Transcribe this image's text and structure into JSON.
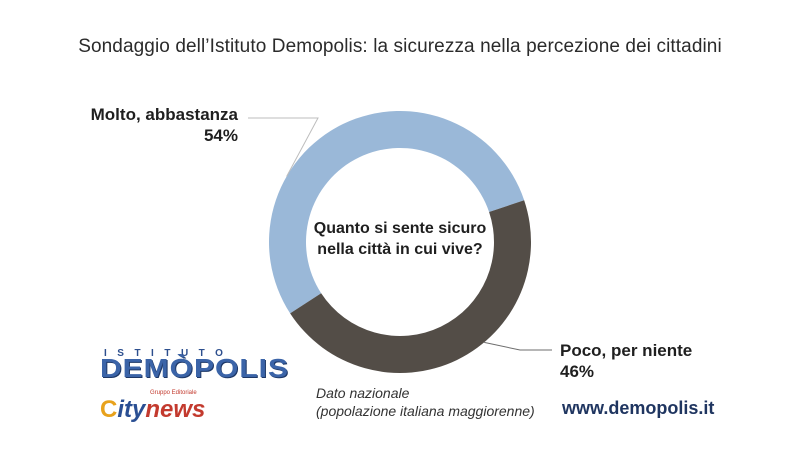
{
  "title": "Sondaggio dell’Istituto Demopolis: la sicurezza nella percezione dei cittadini",
  "center_question": [
    "Quanto si sente sicuro",
    "nella città in cui vive?"
  ],
  "footnote": [
    "Dato nazionale",
    "(popolazione italiana maggiorenne)"
  ],
  "website": "www.demopolis.it",
  "logos": {
    "istituto": "ISTITUTO",
    "demopolis": "DEMÒPOLIS",
    "city_c": "C",
    "city_rest": "ity",
    "city_news": "news",
    "gruppo": "Gruppo Editoriale"
  },
  "chart_data": {
    "type": "pie",
    "donut": true,
    "slices": [
      {
        "label": "Molto, abbastanza",
        "value": 54,
        "display": "54%",
        "color": "#9ab8d8"
      },
      {
        "label": "Poco, per niente",
        "value": 46,
        "display": "46%",
        "color": "#534d47"
      }
    ]
  }
}
